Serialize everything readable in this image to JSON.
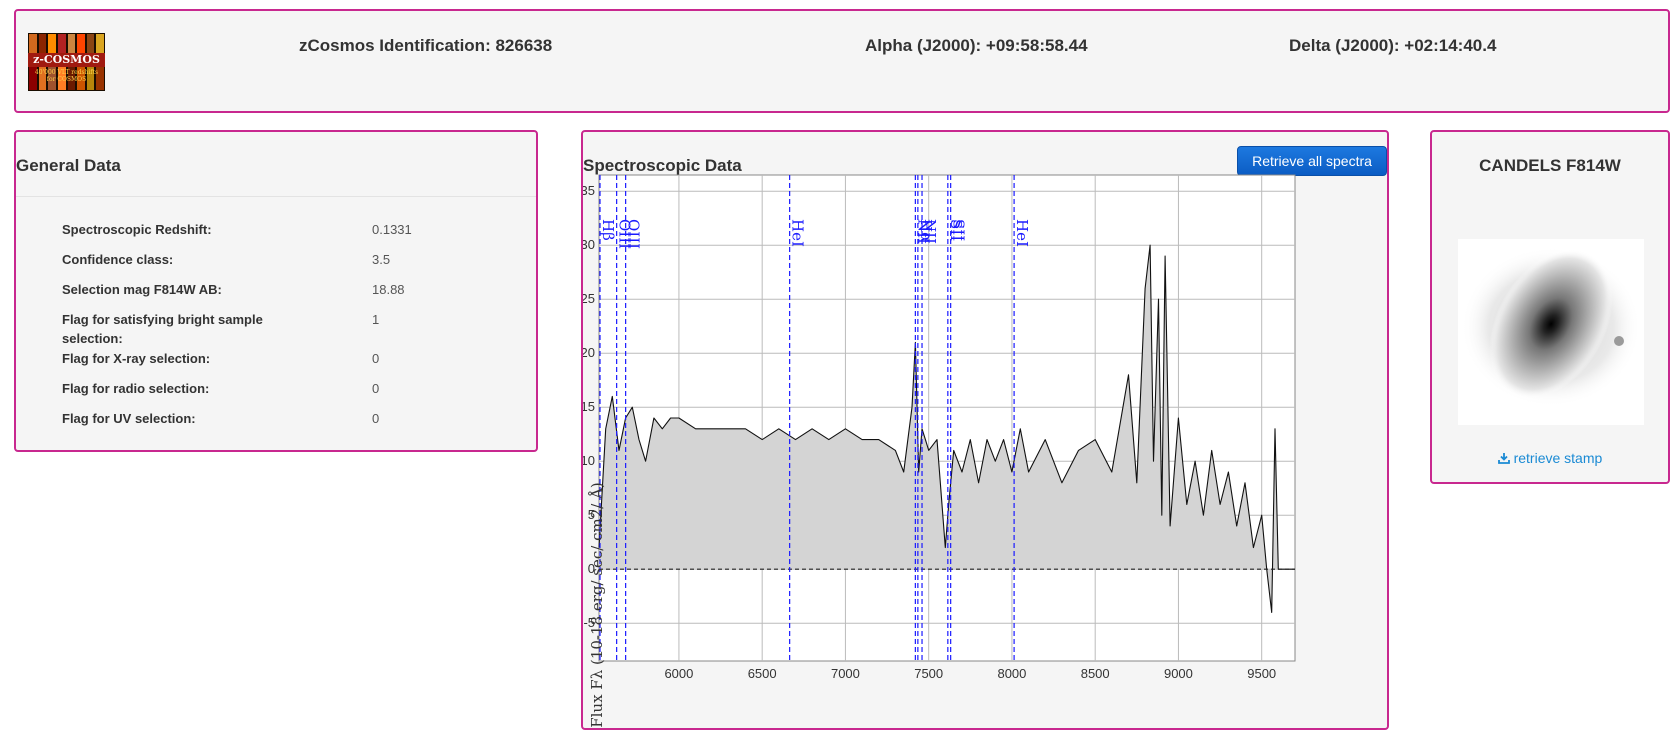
{
  "header": {
    "logo": {
      "title": "z-COSMOS",
      "line1": "40'000 VLT redshifts",
      "line2": "for COSMOS"
    },
    "identification": "zCosmos Identification: 826638",
    "alpha": "Alpha (J2000): +09:58:58.44",
    "delta": "Delta (J2000): +02:14:40.4"
  },
  "general": {
    "title": "General Data",
    "rows": [
      {
        "label": "Spectroscopic Redshift:",
        "value": "0.1331"
      },
      {
        "label": "Confidence class:",
        "value": "3.5"
      },
      {
        "label": "Selection mag F814W AB:",
        "value": "18.88"
      },
      {
        "label": "Flag for satisfying bright sample selection:",
        "value": "1"
      },
      {
        "label": "Flag for X-ray selection:",
        "value": "0"
      },
      {
        "label": "Flag for radio selection:",
        "value": "0"
      },
      {
        "label": "Flag for UV selection:",
        "value": "0"
      }
    ]
  },
  "spectro": {
    "title": "Spectroscopic Data",
    "button_label": "Retrieve all spectra"
  },
  "candels": {
    "title": "CANDELS F814W",
    "retrieve_label": "retrieve stamp",
    "icon": "download-icon"
  },
  "colors": {
    "panel_border": "#c8288f",
    "line_marker": "#1a1aff",
    "button": "#0b5cc4",
    "link": "#1a8ad4"
  },
  "chart_data": {
    "type": "area",
    "title": "",
    "xlabel": "",
    "ylabel": "Flux Fλ (10-18 erg/ sec/ cm2/ Å)",
    "xlim": [
      5520,
      9700
    ],
    "ylim": [
      -8.5,
      36.5
    ],
    "xticks": [
      6000,
      6500,
      7000,
      7500,
      8000,
      8500,
      9000,
      9500
    ],
    "yticks": [
      -5,
      0,
      5,
      10,
      15,
      20,
      25,
      30,
      35
    ],
    "grid": true,
    "zero_line": true,
    "series": [
      {
        "x": [
          5520,
          5560,
          5600,
          5640,
          5680,
          5720,
          5760,
          5800,
          5850,
          5900,
          5950,
          6000,
          6100,
          6200,
          6300,
          6400,
          6500,
          6600,
          6700,
          6800,
          6900,
          7000,
          7100,
          7200,
          7300,
          7350,
          7400,
          7420,
          7440,
          7460,
          7480,
          7500,
          7550,
          7600,
          7620,
          7650,
          7700,
          7750,
          7800,
          7850,
          7900,
          7950,
          8000,
          8050,
          8100,
          8200,
          8300,
          8400,
          8500,
          8600,
          8700,
          8750,
          8800,
          8830,
          8850,
          8880,
          8900,
          8920,
          8950,
          9000,
          9050,
          9100,
          9150,
          9200,
          9250,
          9300,
          9350,
          9400,
          9450,
          9500,
          9530,
          9560,
          9580,
          9600,
          9620,
          9660,
          9700
        ],
        "y": [
          2,
          13,
          16,
          11,
          14,
          15,
          12,
          10,
          14,
          13,
          14,
          14,
          13,
          13,
          13,
          13,
          12,
          13,
          12,
          13,
          12,
          13,
          12,
          12,
          11,
          9,
          15,
          21,
          9,
          13,
          12,
          11,
          12,
          2,
          6,
          11,
          9,
          12,
          8,
          12,
          10,
          12,
          9,
          13,
          9,
          12,
          8,
          11,
          12,
          9,
          18,
          8,
          26,
          30,
          10,
          25,
          5,
          29,
          4,
          14,
          6,
          10,
          5,
          11,
          6,
          9,
          4,
          8,
          2,
          5,
          0,
          -4,
          13,
          0,
          0,
          0,
          0
        ]
      }
    ],
    "emission_lines": [
      {
        "label": "Hβ",
        "x": 5512
      },
      {
        "label": "OIII",
        "x": 5626
      },
      {
        "label": "OIII",
        "x": 5680
      },
      {
        "label": "HeI",
        "x": 6665
      },
      {
        "label": "NII",
        "x": 7420
      },
      {
        "label": "Hα",
        "x": 7435
      },
      {
        "label": "NII",
        "x": 7460
      },
      {
        "label": "SII",
        "x": 7615
      },
      {
        "label": "SII",
        "x": 7632
      },
      {
        "label": "HeI",
        "x": 8013
      }
    ]
  }
}
